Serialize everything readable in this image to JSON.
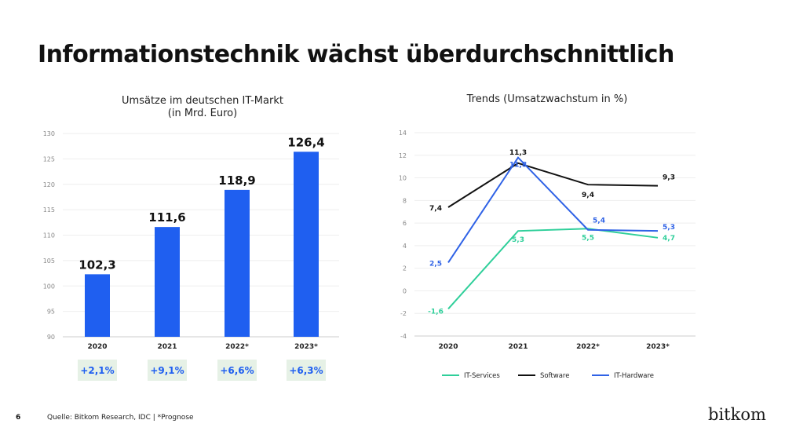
{
  "title": "Informationstechnik wächst überdurchschnittlich",
  "footer": {
    "page_number": "6",
    "source": "Quelle: Bitkom Research, IDC | *Prognose",
    "logo": "bitkom"
  },
  "chart_data": [
    {
      "type": "bar",
      "title": "Umsätze im deutschen IT-Markt",
      "subtitle": "(in Mrd. Euro)",
      "categories": [
        "2020",
        "2021",
        "2022*",
        "2023*"
      ],
      "values": [
        102.3,
        111.6,
        118.9,
        126.4
      ],
      "data_labels": [
        "102,3",
        "111,6",
        "118,9",
        "126,4"
      ],
      "growth_labels": [
        "+2,1%",
        "+9,1%",
        "+6,6%",
        "+6,3%"
      ],
      "ylim": [
        90,
        130
      ],
      "yticks": [
        "90",
        "95",
        "100",
        "105",
        "110",
        "115",
        "120",
        "125",
        "130"
      ],
      "grid": true,
      "colors": {
        "bar": "#1f5ff0",
        "growth_bg": "#e6f1e6",
        "growth_text": "#1f5ff0"
      }
    },
    {
      "type": "line",
      "title": "Trends (Umsatzwachstum in %)",
      "categories": [
        "2020",
        "2021",
        "2022*",
        "2023*"
      ],
      "ylim": [
        -4,
        14
      ],
      "yticks": [
        "-4",
        "-2",
        "0",
        "2",
        "4",
        "6",
        "8",
        "10",
        "12",
        "14"
      ],
      "grid": true,
      "legend_position": "bottom",
      "series": [
        {
          "name": "IT-Services",
          "color": "#2fcf9a",
          "values": [
            -1.6,
            5.3,
            5.5,
            4.7
          ],
          "labels": [
            "-1,6",
            "5,3",
            "5,5",
            "4,7"
          ]
        },
        {
          "name": "Software",
          "color": "#111111",
          "values": [
            7.4,
            11.3,
            9.4,
            9.3
          ],
          "labels": [
            "7,4",
            "11,3",
            "9,4",
            "9,3"
          ]
        },
        {
          "name": "IT-Hardware",
          "color": "#2f62e6",
          "values": [
            2.5,
            11.8,
            5.4,
            5.3
          ],
          "labels": [
            "2,5",
            "11,8",
            "5,4",
            "5,3"
          ]
        }
      ]
    }
  ]
}
